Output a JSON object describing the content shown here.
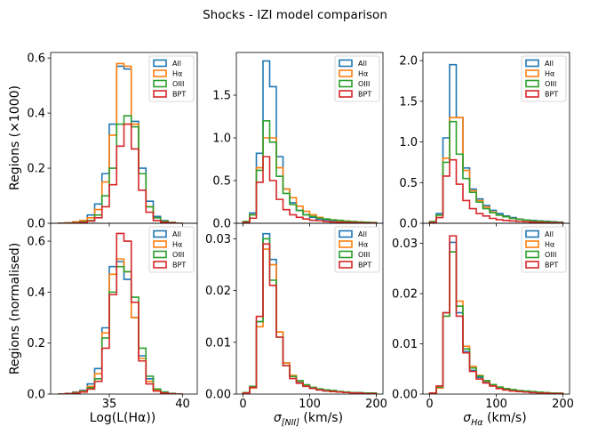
{
  "title": "Shocks - IZI model comparison",
  "colors": {
    "All": "#1f77b4",
    "Halpha": "#ff7f0e",
    "OIII": "#2ca02c",
    "BPT": "#d62728"
  },
  "legend": [
    "All",
    "Hα",
    "OIII",
    "BPT"
  ],
  "row_labels": [
    "Regions (×1000)",
    "Regions (normalised)"
  ],
  "x_labels": [
    "Log(L(Hα))",
    "σ[NII] (km/s)",
    "σHα (km/s)"
  ],
  "chart_data": [
    {
      "type": "histogram-step",
      "row": 0,
      "col": 0,
      "xlim": [
        31,
        41
      ],
      "ylim": [
        0,
        0.62
      ],
      "yticks": [
        0,
        0.2,
        0.4,
        0.6
      ],
      "ytick_labels": [
        "0.0",
        "0.2",
        "0.4",
        "0.6"
      ],
      "xticks": [
        35,
        40
      ],
      "xtick_labels": [
        "",
        ""
      ],
      "bin_edges": [
        31.5,
        32,
        32.5,
        33,
        33.5,
        34,
        34.5,
        35,
        35.5,
        36,
        36.5,
        37,
        37.5,
        38,
        38.5,
        39,
        39.5,
        40
      ],
      "series": [
        {
          "name": "All",
          "values": [
            0,
            0.002,
            0.005,
            0.01,
            0.03,
            0.07,
            0.18,
            0.36,
            0.57,
            0.56,
            0.37,
            0.2,
            0.08,
            0.025,
            0.01,
            0.004,
            0
          ]
        },
        {
          "name": "Hα",
          "values": [
            0,
            0.002,
            0.005,
            0.01,
            0.02,
            0.05,
            0.15,
            0.32,
            0.58,
            0.57,
            0.36,
            0.18,
            0.06,
            0.02,
            0.008,
            0.003,
            0
          ]
        },
        {
          "name": "OIII",
          "values": [
            0,
            0,
            0.002,
            0.005,
            0.01,
            0.03,
            0.1,
            0.2,
            0.36,
            0.39,
            0.35,
            0.18,
            0.06,
            0.02,
            0.008,
            0.002,
            0
          ]
        },
        {
          "name": "BPT",
          "values": [
            0,
            0,
            0.001,
            0.003,
            0.008,
            0.02,
            0.06,
            0.14,
            0.28,
            0.36,
            0.27,
            0.12,
            0.04,
            0.01,
            0.004,
            0.001,
            0
          ]
        }
      ]
    },
    {
      "type": "histogram-step",
      "row": 0,
      "col": 1,
      "xlim": [
        -10,
        210
      ],
      "ylim": [
        0,
        2
      ],
      "yticks": [
        0,
        0.5,
        1,
        1.5
      ],
      "ytick_labels": [
        "0.0",
        "0.5",
        "1.0",
        "1.5"
      ],
      "xticks": [
        0,
        100,
        200
      ],
      "xtick_labels": [
        "",
        "",
        ""
      ],
      "bin_edges": [
        0,
        10,
        20,
        30,
        40,
        50,
        60,
        70,
        80,
        90,
        100,
        110,
        120,
        130,
        140,
        150,
        160,
        170,
        180,
        190,
        200
      ],
      "series": [
        {
          "name": "All",
          "values": [
            0.02,
            0.12,
            0.82,
            1.9,
            1.6,
            0.78,
            0.4,
            0.24,
            0.15,
            0.1,
            0.07,
            0.05,
            0.04,
            0.03,
            0.025,
            0.02,
            0.015,
            0.01,
            0.008,
            0.006
          ]
        },
        {
          "name": "Hα",
          "values": [
            0.02,
            0.1,
            0.65,
            1.0,
            1.0,
            0.65,
            0.4,
            0.3,
            0.2,
            0.14,
            0.1,
            0.07,
            0.05,
            0.04,
            0.03,
            0.025,
            0.02,
            0.015,
            0.01,
            0.008
          ]
        },
        {
          "name": "OIII",
          "values": [
            0.02,
            0.1,
            0.62,
            1.2,
            0.95,
            0.55,
            0.35,
            0.22,
            0.15,
            0.1,
            0.08,
            0.06,
            0.05,
            0.04,
            0.035,
            0.025,
            0.02,
            0.015,
            0.012,
            0.008
          ]
        },
        {
          "name": "BPT",
          "values": [
            0.01,
            0.06,
            0.48,
            0.78,
            0.5,
            0.28,
            0.16,
            0.1,
            0.07,
            0.05,
            0.035,
            0.03,
            0.02,
            0.015,
            0.012,
            0.01,
            0.008,
            0.006,
            0.004,
            0.003
          ]
        }
      ]
    },
    {
      "type": "histogram-step",
      "row": 0,
      "col": 2,
      "xlim": [
        -10,
        210
      ],
      "ylim": [
        0,
        2.1
      ],
      "yticks": [
        0,
        0.5,
        1,
        1.5,
        2
      ],
      "ytick_labels": [
        "0.0",
        "0.5",
        "1.0",
        "1.5",
        "2.0"
      ],
      "xticks": [
        0,
        100,
        200
      ],
      "xtick_labels": [
        "",
        "",
        ""
      ],
      "bin_edges": [
        0,
        10,
        20,
        30,
        40,
        50,
        60,
        70,
        80,
        90,
        100,
        110,
        120,
        130,
        140,
        150,
        160,
        170,
        180,
        190,
        200
      ],
      "series": [
        {
          "name": "All",
          "values": [
            0.02,
            0.12,
            1.05,
            1.95,
            1.3,
            0.68,
            0.42,
            0.3,
            0.22,
            0.16,
            0.12,
            0.09,
            0.07,
            0.05,
            0.04,
            0.035,
            0.03,
            0.025,
            0.02,
            0.015
          ]
        },
        {
          "name": "Hα",
          "values": [
            0.02,
            0.1,
            0.8,
            1.3,
            1.3,
            0.65,
            0.4,
            0.28,
            0.2,
            0.14,
            0.1,
            0.08,
            0.06,
            0.05,
            0.04,
            0.03,
            0.025,
            0.02,
            0.015,
            0.01
          ]
        },
        {
          "name": "OIII",
          "values": [
            0.02,
            0.1,
            0.75,
            1.25,
            0.85,
            0.55,
            0.38,
            0.26,
            0.18,
            0.13,
            0.1,
            0.08,
            0.06,
            0.05,
            0.04,
            0.03,
            0.025,
            0.02,
            0.015,
            0.01
          ]
        },
        {
          "name": "BPT",
          "values": [
            0.01,
            0.07,
            0.58,
            0.78,
            0.48,
            0.28,
            0.18,
            0.12,
            0.09,
            0.06,
            0.045,
            0.035,
            0.028,
            0.022,
            0.018,
            0.014,
            0.01,
            0.008,
            0.006,
            0.005
          ]
        }
      ]
    },
    {
      "type": "histogram-step",
      "row": 1,
      "col": 0,
      "xlim": [
        31,
        41
      ],
      "ylim": [
        0,
        0.67
      ],
      "yticks": [
        0,
        0.2,
        0.4,
        0.6
      ],
      "ytick_labels": [
        "0.0",
        "0.2",
        "0.4",
        "0.6"
      ],
      "xticks": [
        35,
        40
      ],
      "xtick_labels": [
        "35",
        "40"
      ],
      "bin_edges": [
        31.5,
        32,
        32.5,
        33,
        33.5,
        34,
        34.5,
        35,
        35.5,
        36,
        36.5,
        37,
        37.5,
        38,
        38.5,
        39,
        39.5,
        40
      ],
      "series": [
        {
          "name": "All",
          "values": [
            0,
            0.003,
            0.008,
            0.015,
            0.04,
            0.1,
            0.26,
            0.5,
            0.52,
            0.45,
            0.3,
            0.15,
            0.06,
            0.02,
            0.008,
            0.003,
            0
          ]
        },
        {
          "name": "Hα",
          "values": [
            0,
            0.002,
            0.006,
            0.012,
            0.03,
            0.08,
            0.24,
            0.47,
            0.53,
            0.48,
            0.3,
            0.14,
            0.05,
            0.015,
            0.006,
            0.002,
            0
          ]
        },
        {
          "name": "OIII",
          "values": [
            0,
            0.001,
            0.004,
            0.01,
            0.025,
            0.06,
            0.22,
            0.4,
            0.5,
            0.48,
            0.38,
            0.18,
            0.07,
            0.02,
            0.008,
            0.002,
            0
          ]
        },
        {
          "name": "BPT",
          "values": [
            0,
            0.001,
            0.003,
            0.008,
            0.02,
            0.05,
            0.18,
            0.39,
            0.63,
            0.6,
            0.36,
            0.13,
            0.04,
            0.012,
            0.004,
            0.001,
            0
          ]
        }
      ]
    },
    {
      "type": "histogram-step",
      "row": 1,
      "col": 1,
      "xlim": [
        -10,
        210
      ],
      "ylim": [
        0,
        0.033
      ],
      "yticks": [
        0,
        0.01,
        0.02,
        0.03
      ],
      "ytick_labels": [
        "0.00",
        "0.01",
        "0.02",
        "0.03"
      ],
      "xticks": [
        0,
        100,
        200
      ],
      "xtick_labels": [
        "0",
        "100",
        "200"
      ],
      "bin_edges": [
        0,
        10,
        20,
        30,
        40,
        50,
        60,
        70,
        80,
        90,
        100,
        110,
        120,
        130,
        140,
        150,
        160,
        170,
        180,
        190,
        200
      ],
      "series": [
        {
          "name": "All",
          "values": [
            0.0003,
            0.0012,
            0.014,
            0.031,
            0.026,
            0.012,
            0.006,
            0.0035,
            0.0024,
            0.0016,
            0.0011,
            0.0008,
            0.0006,
            0.0005,
            0.0004,
            0.0003,
            0.0003,
            0.0002,
            0.0002,
            0.0001
          ]
        },
        {
          "name": "Hα",
          "values": [
            0.0003,
            0.0012,
            0.013,
            0.028,
            0.025,
            0.012,
            0.006,
            0.0036,
            0.0025,
            0.0017,
            0.0012,
            0.0009,
            0.0007,
            0.0005,
            0.0004,
            0.0003,
            0.0003,
            0.0002,
            0.0002,
            0.0001
          ]
        },
        {
          "name": "OIII",
          "values": [
            0.0003,
            0.0015,
            0.014,
            0.03,
            0.022,
            0.011,
            0.0055,
            0.0034,
            0.0026,
            0.0018,
            0.0013,
            0.001,
            0.0008,
            0.0007,
            0.0005,
            0.0004,
            0.0003,
            0.0003,
            0.0002,
            0.0002
          ]
        },
        {
          "name": "BPT",
          "values": [
            0.0002,
            0.0013,
            0.015,
            0.029,
            0.021,
            0.011,
            0.0055,
            0.003,
            0.0021,
            0.0015,
            0.0011,
            0.0008,
            0.0006,
            0.0005,
            0.0004,
            0.0003,
            0.0002,
            0.0002,
            0.0001,
            0.0001
          ]
        }
      ]
    },
    {
      "type": "histogram-step",
      "row": 1,
      "col": 2,
      "xlim": [
        -10,
        210
      ],
      "ylim": [
        0,
        0.034
      ],
      "yticks": [
        0,
        0.01,
        0.02,
        0.03
      ],
      "ytick_labels": [
        "0.00",
        "0.01",
        "0.02",
        "0.03"
      ],
      "xticks": [
        0,
        100,
        200
      ],
      "xtick_labels": [
        "0",
        "100",
        "200"
      ],
      "bin_edges": [
        0,
        10,
        20,
        30,
        40,
        50,
        60,
        70,
        80,
        90,
        100,
        110,
        120,
        130,
        140,
        150,
        160,
        170,
        180,
        190,
        200
      ],
      "series": [
        {
          "name": "All",
          "values": [
            0.0002,
            0.0012,
            0.0162,
            0.0302,
            0.0162,
            0.0085,
            0.0047,
            0.0033,
            0.0024,
            0.0017,
            0.0012,
            0.0009,
            0.0007,
            0.0005,
            0.0004,
            0.0003,
            0.0003,
            0.0002,
            0.0002,
            0.0001
          ]
        },
        {
          "name": "Hα",
          "values": [
            0.0002,
            0.0012,
            0.0155,
            0.0283,
            0.0185,
            0.0095,
            0.0055,
            0.0037,
            0.0026,
            0.0018,
            0.0013,
            0.001,
            0.0008,
            0.0006,
            0.0005,
            0.0004,
            0.0003,
            0.0002,
            0.0002,
            0.0001
          ]
        },
        {
          "name": "OIII",
          "values": [
            0.0002,
            0.0014,
            0.0155,
            0.0283,
            0.0175,
            0.009,
            0.0052,
            0.0036,
            0.0027,
            0.0019,
            0.0014,
            0.0011,
            0.0009,
            0.0007,
            0.0006,
            0.0005,
            0.0004,
            0.0003,
            0.0002,
            0.0002
          ]
        },
        {
          "name": "BPT",
          "values": [
            0.0002,
            0.0016,
            0.0162,
            0.0315,
            0.0155,
            0.0082,
            0.0045,
            0.003,
            0.0022,
            0.0016,
            0.0011,
            0.0008,
            0.0006,
            0.0005,
            0.0004,
            0.0003,
            0.0002,
            0.0002,
            0.0001,
            0.0001
          ]
        }
      ]
    }
  ]
}
